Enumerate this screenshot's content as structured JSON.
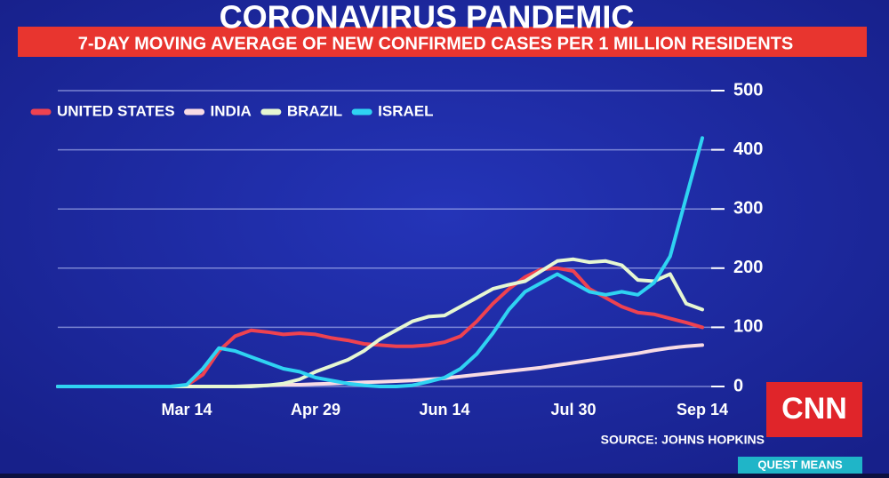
{
  "chart_data": {
    "type": "line",
    "title": "CORONAVIRUS PANDEMIC",
    "subtitle": "7-DAY MOVING AVERAGE OF NEW CONFIRMED CASES PER 1 MILLION RESIDENTS",
    "source": "SOURCE: JOHNS HOPKINS",
    "logo": "CNN",
    "ticker": "QUEST MEANS",
    "categories": [
      null,
      null,
      null,
      null,
      null,
      null,
      null,
      null,
      "Mar 14",
      null,
      null,
      null,
      null,
      null,
      null,
      null,
      "Apr 29",
      null,
      null,
      null,
      null,
      null,
      null,
      null,
      "Jun 14",
      null,
      null,
      null,
      null,
      null,
      null,
      null,
      "Jul 30",
      null,
      null,
      null,
      null,
      null,
      null,
      null,
      "Sep 14"
    ],
    "ylim": [
      0,
      500
    ],
    "yticks": [
      0,
      100,
      200,
      300,
      400,
      500
    ],
    "grid": true,
    "legend": "top-left",
    "series": [
      {
        "name": "UNITED STATES",
        "color": "#ef4250",
        "values": [
          0,
          0,
          0,
          0,
          0,
          0,
          0,
          0,
          2,
          20,
          60,
          85,
          95,
          92,
          88,
          90,
          88,
          82,
          78,
          72,
          70,
          68,
          68,
          70,
          75,
          85,
          110,
          140,
          165,
          185,
          198,
          200,
          195,
          165,
          150,
          135,
          125,
          122,
          115,
          108,
          100
        ]
      },
      {
        "name": "INDIA",
        "color": "#f8dbe4",
        "values": [
          0,
          0,
          0,
          0,
          0,
          0,
          0,
          0,
          0,
          0,
          0,
          0,
          1,
          2,
          3,
          3,
          4,
          5,
          6,
          7,
          8,
          9,
          10,
          12,
          14,
          17,
          20,
          23,
          26,
          29,
          32,
          36,
          40,
          44,
          48,
          52,
          56,
          61,
          65,
          68,
          70
        ]
      },
      {
        "name": "BRAZIL",
        "color": "#e6f7d2",
        "values": [
          0,
          0,
          0,
          0,
          0,
          0,
          0,
          0,
          0,
          0,
          0,
          0,
          0,
          2,
          5,
          12,
          25,
          35,
          45,
          60,
          80,
          95,
          110,
          118,
          120,
          135,
          150,
          165,
          172,
          178,
          195,
          212,
          215,
          210,
          212,
          205,
          180,
          178,
          190,
          140,
          130
        ]
      },
      {
        "name": "ISRAEL",
        "color": "#2fd3f2",
        "values": [
          0,
          0,
          0,
          0,
          0,
          0,
          0,
          0,
          3,
          30,
          65,
          60,
          50,
          40,
          30,
          25,
          15,
          10,
          5,
          2,
          0,
          0,
          2,
          8,
          15,
          30,
          55,
          90,
          130,
          160,
          175,
          190,
          175,
          160,
          155,
          160,
          155,
          175,
          220,
          320,
          420
        ]
      }
    ]
  }
}
